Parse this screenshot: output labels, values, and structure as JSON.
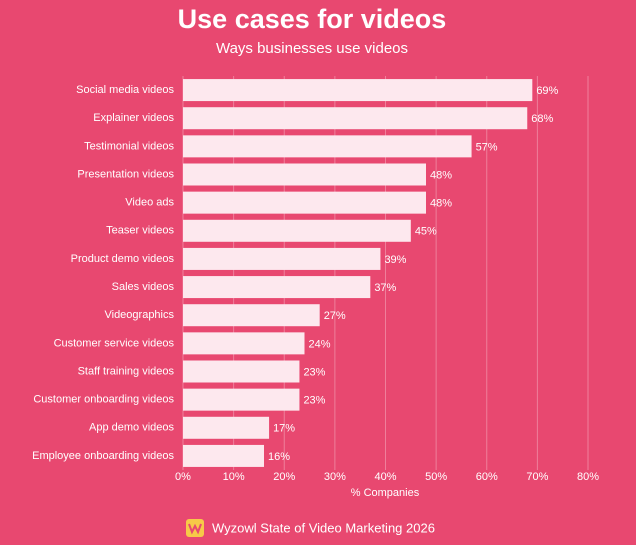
{
  "chart_data": {
    "type": "bar",
    "orientation": "horizontal",
    "title": "Use cases for videos",
    "subtitle": "Ways businesses use videos",
    "categories": [
      "Social media videos",
      "Explainer videos",
      "Testimonial videos",
      "Presentation videos",
      "Video ads",
      "Teaser videos",
      "Product demo videos",
      "Sales videos",
      "Videographics",
      "Customer service videos",
      "Staff training videos",
      "Customer onboarding videos",
      "App demo videos",
      "Employee onboarding videos"
    ],
    "values": [
      69,
      68,
      57,
      48,
      48,
      45,
      39,
      37,
      27,
      24,
      23,
      23,
      17,
      16
    ],
    "value_labels": [
      "69%",
      "68%",
      "57%",
      "48%",
      "48%",
      "45%",
      "39%",
      "37%",
      "27%",
      "24%",
      "23%",
      "23%",
      "17%",
      "16%"
    ],
    "color": "#fde8ee",
    "xlim": [
      0,
      80
    ],
    "xticks": [
      {
        "value": 0,
        "label": "0%"
      },
      {
        "value": 10,
        "label": "10%"
      },
      {
        "value": 20,
        "label": "20%"
      },
      {
        "value": 30,
        "label": "30%"
      },
      {
        "value": 40,
        "label": "40%"
      },
      {
        "value": 50,
        "label": "50%"
      },
      {
        "value": 60,
        "label": "60%"
      },
      {
        "value": 70,
        "label": "70%"
      },
      {
        "value": 80,
        "label": "80%"
      }
    ],
    "xlabel": "% Companies",
    "grid": true,
    "source": "Wyzowl State of Video Marketing 2026"
  }
}
